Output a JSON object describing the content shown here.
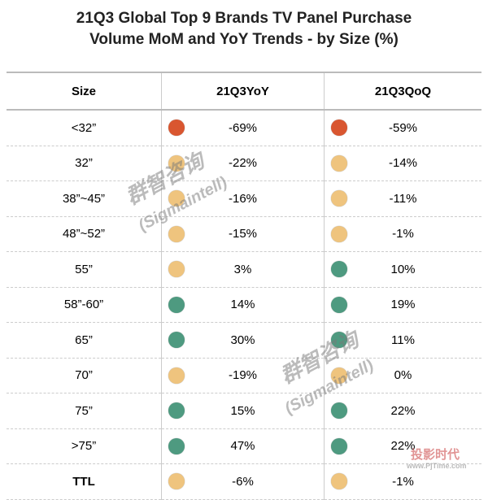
{
  "title": [
    "21Q3 Global Top 9 Brands TV Panel Purchase",
    "Volume MoM and YoY Trends - by Size (%)"
  ],
  "colors": {
    "red": "#d95630",
    "orange": "#efc47e",
    "green": "#4e9a80"
  },
  "table": {
    "header": [
      "Size",
      "21Q3YoY",
      "21Q3QoQ"
    ],
    "rows": [
      {
        "size": "<32”",
        "yoy": {
          "text": "-69%",
          "dot": "red"
        },
        "qoq": {
          "text": "-59%",
          "dot": "red"
        }
      },
      {
        "size": "32”",
        "yoy": {
          "text": "-22%",
          "dot": "orange"
        },
        "qoq": {
          "text": "-14%",
          "dot": "orange"
        }
      },
      {
        "size": "38”~45”",
        "yoy": {
          "text": "-16%",
          "dot": "orange"
        },
        "qoq": {
          "text": "-11%",
          "dot": "orange"
        }
      },
      {
        "size": "48”~52”",
        "yoy": {
          "text": "-15%",
          "dot": "orange"
        },
        "qoq": {
          "text": "-1%",
          "dot": "orange"
        }
      },
      {
        "size": "55”",
        "yoy": {
          "text": "3%",
          "dot": "orange"
        },
        "qoq": {
          "text": "10%",
          "dot": "green"
        }
      },
      {
        "size": "58”-60”",
        "yoy": {
          "text": "14%",
          "dot": "green"
        },
        "qoq": {
          "text": "19%",
          "dot": "green"
        }
      },
      {
        "size": "65”",
        "yoy": {
          "text": "30%",
          "dot": "green"
        },
        "qoq": {
          "text": "11%",
          "dot": "green"
        }
      },
      {
        "size": "70”",
        "yoy": {
          "text": "-19%",
          "dot": "orange"
        },
        "qoq": {
          "text": "0%",
          "dot": "orange"
        }
      },
      {
        "size": "75”",
        "yoy": {
          "text": "15%",
          "dot": "green"
        },
        "qoq": {
          "text": "22%",
          "dot": "green"
        }
      },
      {
        "size": ">75”",
        "yoy": {
          "text": "47%",
          "dot": "green"
        },
        "qoq": {
          "text": "22%",
          "dot": "green"
        }
      },
      {
        "size": "TTL",
        "yoy": {
          "text": "-6%",
          "dot": "orange"
        },
        "qoq": {
          "text": "-1%",
          "dot": "orange"
        }
      }
    ]
  },
  "watermarks": [
    "群智咨询",
    "(Sigmaintell)",
    "投影时代",
    "www.PjTime.com"
  ]
}
